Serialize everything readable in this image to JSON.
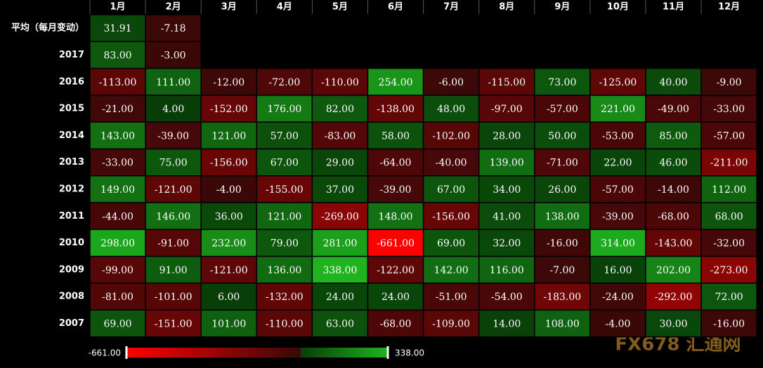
{
  "chart_data": {
    "type": "heatmap",
    "categories": [
      "1月",
      "2月",
      "3月",
      "4月",
      "5月",
      "6月",
      "7月",
      "8月",
      "9月",
      "10月",
      "11月",
      "12月"
    ],
    "series": [
      {
        "name": "平均（每月变动）",
        "values": [
          31.91,
          -7.18,
          null,
          null,
          null,
          null,
          null,
          null,
          null,
          null,
          null,
          null
        ],
        "value_labels": [
          "31.91",
          "-7.18",
          null,
          null,
          null,
          null,
          null,
          null,
          null,
          null,
          null,
          null
        ]
      },
      {
        "name": "2017",
        "values": [
          83,
          -3,
          null,
          null,
          null,
          null,
          null,
          null,
          null,
          null,
          null,
          null
        ],
        "value_labels": [
          "83.00",
          "-3.00",
          null,
          null,
          null,
          null,
          null,
          null,
          null,
          null,
          null,
          null
        ]
      },
      {
        "name": "2016",
        "values": [
          -113,
          111,
          -12,
          -72,
          -110,
          254,
          -6,
          -115,
          73,
          -125,
          40,
          -9
        ],
        "value_labels": [
          "-113.00",
          "111.00",
          "-12.00",
          "-72.00",
          "-110.00",
          "254.00",
          "-6.00",
          "-115.00",
          "73.00",
          "-125.00",
          "40.00",
          "-9.00"
        ]
      },
      {
        "name": "2015",
        "values": [
          -21,
          4,
          -152,
          176,
          82,
          -138,
          48,
          -97,
          -57,
          221,
          -49,
          -33
        ],
        "value_labels": [
          "-21.00",
          "4.00",
          "-152.00",
          "176.00",
          "82.00",
          "-138.00",
          "48.00",
          "-97.00",
          "-57.00",
          "221.00",
          "-49.00",
          "-33.00"
        ]
      },
      {
        "name": "2014",
        "values": [
          143,
          -39,
          121,
          57,
          -83,
          58,
          -102,
          28,
          50,
          -53,
          85,
          -57
        ],
        "value_labels": [
          "143.00",
          "-39.00",
          "121.00",
          "57.00",
          "-83.00",
          "58.00",
          "-102.00",
          "28.00",
          "50.00",
          "-53.00",
          "85.00",
          "-57.00"
        ]
      },
      {
        "name": "2013",
        "values": [
          -33,
          75,
          -156,
          67,
          29,
          -64,
          -40,
          139,
          -71,
          22,
          46,
          -211
        ],
        "value_labels": [
          "-33.00",
          "75.00",
          "-156.00",
          "67.00",
          "29.00",
          "-64.00",
          "-40.00",
          "139.00",
          "-71.00",
          "22.00",
          "46.00",
          "-211.00"
        ]
      },
      {
        "name": "2012",
        "values": [
          149,
          -121,
          -4,
          -155,
          37,
          -39,
          67,
          34,
          26,
          -57,
          -14,
          112
        ],
        "value_labels": [
          "149.00",
          "-121.00",
          "-4.00",
          "-155.00",
          "37.00",
          "-39.00",
          "67.00",
          "34.00",
          "26.00",
          "-57.00",
          "-14.00",
          "112.00"
        ]
      },
      {
        "name": "2011",
        "values": [
          -44,
          146,
          36,
          121,
          -269,
          148,
          -156,
          41,
          138,
          -39,
          -68,
          68
        ],
        "value_labels": [
          "-44.00",
          "146.00",
          "36.00",
          "121.00",
          "-269.00",
          "148.00",
          "-156.00",
          "41.00",
          "138.00",
          "-39.00",
          "-68.00",
          "68.00"
        ]
      },
      {
        "name": "2010",
        "values": [
          298,
          -91,
          232,
          79,
          281,
          -661,
          69,
          32,
          -16,
          314,
          -143,
          -32
        ],
        "value_labels": [
          "298.00",
          "-91.00",
          "232.00",
          "79.00",
          "281.00",
          "-661.00",
          "69.00",
          "32.00",
          "-16.00",
          "314.00",
          "-143.00",
          "-32.00"
        ]
      },
      {
        "name": "2009",
        "values": [
          -99,
          91,
          -121,
          136,
          338,
          -122,
          142,
          116,
          -7,
          16,
          202,
          -273
        ],
        "value_labels": [
          "-99.00",
          "91.00",
          "-121.00",
          "136.00",
          "338.00",
          "-122.00",
          "142.00",
          "116.00",
          "-7.00",
          "16.00",
          "202.00",
          "-273.00"
        ]
      },
      {
        "name": "2008",
        "values": [
          -81,
          -101,
          6,
          -132,
          24,
          24,
          -51,
          -54,
          -183,
          -24,
          -292,
          72
        ],
        "value_labels": [
          "-81.00",
          "-101.00",
          "6.00",
          "-132.00",
          "24.00",
          "24.00",
          "-51.00",
          "-54.00",
          "-183.00",
          "-24.00",
          "-292.00",
          "72.00"
        ]
      },
      {
        "name": "2007",
        "values": [
          69,
          -151,
          101,
          -110,
          63,
          -68,
          -109,
          14,
          108,
          -4,
          30,
          -16
        ],
        "value_labels": [
          "69.00",
          "-151.00",
          "101.00",
          "-110.00",
          "63.00",
          "-68.00",
          "-109.00",
          "14.00",
          "108.00",
          "-4.00",
          "30.00",
          "-16.00"
        ]
      }
    ],
    "color_range": [
      {
        "value": -661,
        "label": "-661.00"
      },
      {
        "value": 338,
        "label": "338.00"
      }
    ],
    "color_scale": {
      "negative": [
        "#3a0808",
        "#ff0000"
      ],
      "positive": [
        "#083c08",
        "#1fb41f"
      ]
    },
    "watermark": "FX678 汇通网"
  }
}
